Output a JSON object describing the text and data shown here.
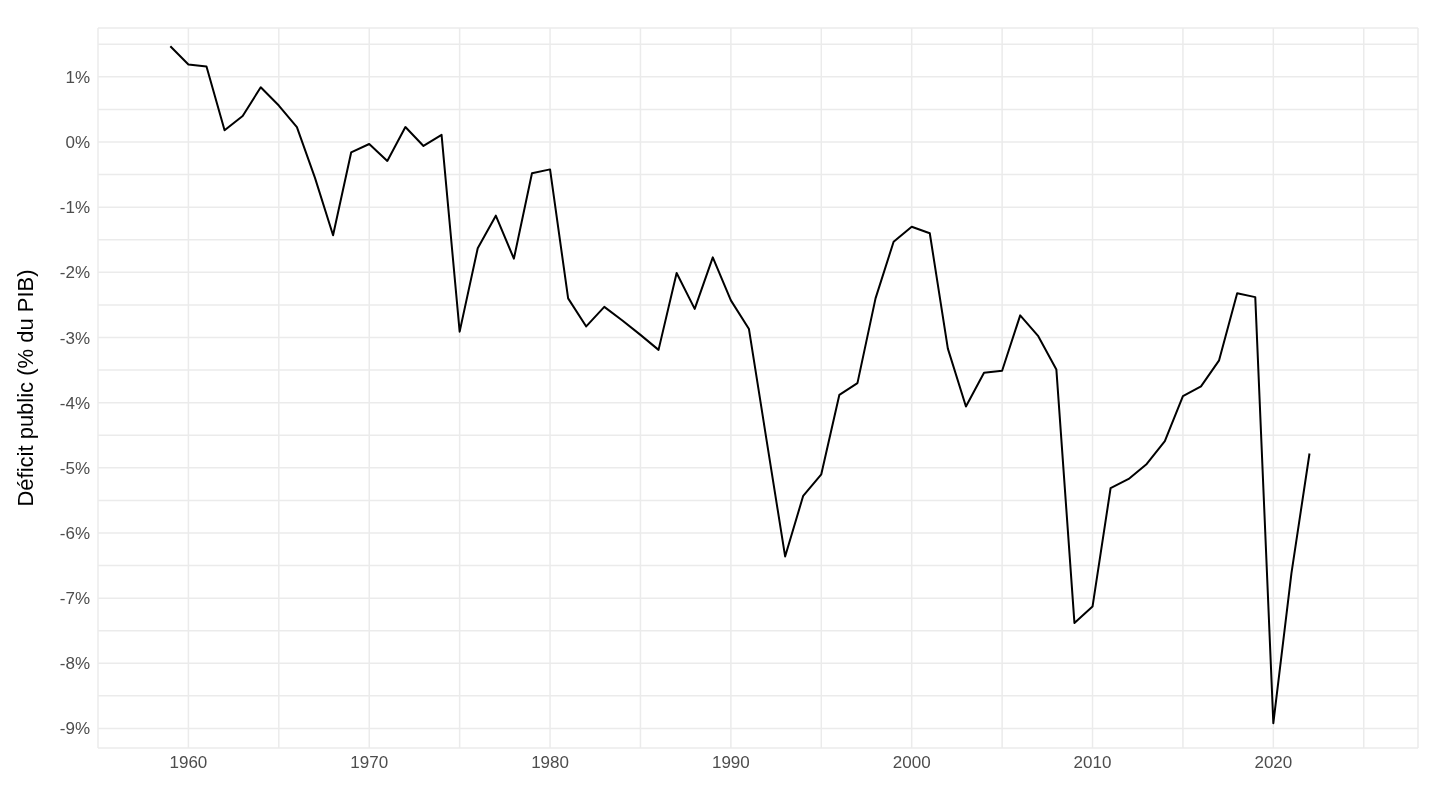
{
  "chart_data": {
    "type": "line",
    "ylabel": "Déficit public (% du PIB)",
    "x": [
      1959,
      1960,
      1961,
      1962,
      1963,
      1964,
      1965,
      1966,
      1967,
      1968,
      1969,
      1970,
      1971,
      1972,
      1973,
      1974,
      1975,
      1976,
      1977,
      1978,
      1979,
      1980,
      1981,
      1982,
      1983,
      1984,
      1985,
      1986,
      1987,
      1988,
      1989,
      1990,
      1991,
      1992,
      1993,
      1994,
      1995,
      1996,
      1997,
      1998,
      1999,
      2000,
      2001,
      2002,
      2003,
      2004,
      2005,
      2006,
      2007,
      2008,
      2009,
      2010,
      2011,
      2012,
      2013,
      2014,
      2015,
      2016,
      2017,
      2018,
      2019,
      2020,
      2021,
      2022
    ],
    "series": [
      {
        "color": "#000000",
        "values": [
          1.47,
          1.19,
          1.16,
          0.18,
          0.4,
          0.84,
          0.56,
          0.23,
          -0.55,
          -1.43,
          -0.16,
          -0.03,
          -0.29,
          0.23,
          -0.06,
          0.11,
          -2.91,
          -1.63,
          -1.13,
          -1.79,
          -0.48,
          -0.42,
          -2.4,
          -2.83,
          -2.53,
          -2.74,
          -2.96,
          -3.19,
          -2.01,
          -2.56,
          -1.77,
          -2.43,
          -2.87,
          -4.62,
          -6.36,
          -5.43,
          -5.1,
          -3.88,
          -3.7,
          -2.4,
          -1.53,
          -1.3,
          -1.4,
          -3.17,
          -4.06,
          -3.54,
          -3.51,
          -2.66,
          -2.98,
          -3.49,
          -7.38,
          -7.13,
          -5.31,
          -5.17,
          -4.94,
          -4.59,
          -3.9,
          -3.75,
          -3.35,
          -2.32,
          -2.38,
          -8.92,
          -6.62,
          -4.78
        ]
      }
    ],
    "xlim": [
      1955,
      2028
    ],
    "xticks": [
      {
        "value": 1955,
        "label": null
      },
      1960,
      {
        "value": 1965,
        "label": null
      },
      1970,
      {
        "value": 1975,
        "label": null
      },
      1980,
      {
        "value": 1985,
        "label": null
      },
      1990,
      {
        "value": 1995,
        "label": null
      },
      2000,
      {
        "value": 2005,
        "label": null
      },
      2010,
      {
        "value": 2015,
        "label": null
      },
      2020,
      {
        "value": 2025,
        "label": null
      }
    ],
    "ylim": [
      -9.3,
      1.75
    ],
    "yticks": [
      {
        "value": 1.5,
        "label": null
      },
      {
        "value": 1,
        "label": "1%"
      },
      {
        "value": 0.5,
        "label": null
      },
      {
        "value": 0,
        "label": "0%"
      },
      {
        "value": -0.5,
        "label": null
      },
      {
        "value": -1,
        "label": "-1%"
      },
      {
        "value": -1.5,
        "label": null
      },
      {
        "value": -2,
        "label": "-2%"
      },
      {
        "value": -2.5,
        "label": null
      },
      {
        "value": -3,
        "label": "-3%"
      },
      {
        "value": -3.5,
        "label": null
      },
      {
        "value": -4,
        "label": "-4%"
      },
      {
        "value": -4.5,
        "label": null
      },
      {
        "value": -5,
        "label": "-5%"
      },
      {
        "value": -5.5,
        "label": null
      },
      {
        "value": -6,
        "label": "-6%"
      },
      {
        "value": -6.5,
        "label": null
      },
      {
        "value": -7,
        "label": "-7%"
      },
      {
        "value": -7.5,
        "label": null
      },
      {
        "value": -8,
        "label": "-8%"
      },
      {
        "value": -8.5,
        "label": null
      },
      {
        "value": -9,
        "label": "-9%"
      }
    ],
    "grid": true,
    "marker": "none",
    "line_style": "solid"
  }
}
